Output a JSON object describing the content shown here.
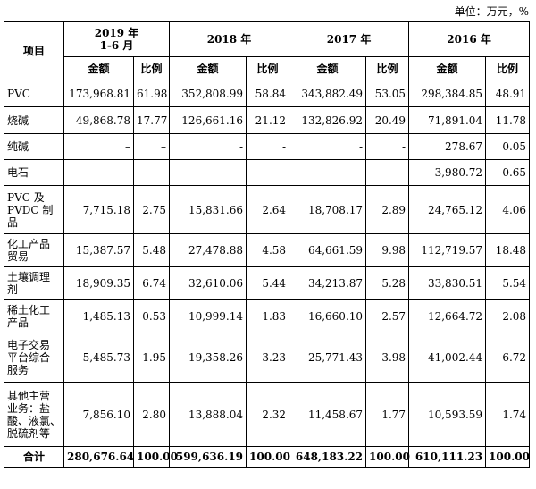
{
  "unit_note": "单位：万元，%",
  "header": {
    "item": "项目",
    "periods": [
      "2019 年\n1-6 月",
      "2018 年",
      "2017 年",
      "2016 年"
    ],
    "amount": "金额",
    "ratio": "比例"
  },
  "rows": [
    {
      "label": "PVC",
      "values": [
        "173,968.81",
        "61.98",
        "352,808.99",
        "58.84",
        "343,882.49",
        "53.05",
        "298,384.85",
        "48.91"
      ]
    },
    {
      "label": "烧碱",
      "values": [
        "49,868.78",
        "17.77",
        "126,661.16",
        "21.12",
        "132,826.92",
        "20.49",
        "71,891.04",
        "11.78"
      ]
    },
    {
      "label": "纯碱",
      "values": [
        "–",
        "–",
        "-",
        "-",
        "-",
        "-",
        "278.67",
        "0.05"
      ]
    },
    {
      "label": "电石",
      "values": [
        "–",
        "–",
        "-",
        "-",
        "-",
        "-",
        "3,980.72",
        "0.65"
      ]
    },
    {
      "label": "PVC 及\nPVDC 制\n品",
      "values": [
        "7,715.18",
        "2.75",
        "15,831.66",
        "2.64",
        "18,708.17",
        "2.89",
        "24,765.12",
        "4.06"
      ]
    },
    {
      "label": "化工产品\n贸易",
      "values": [
        "15,387.57",
        "5.48",
        "27,478.88",
        "4.58",
        "64,661.59",
        "9.98",
        "112,719.57",
        "18.48"
      ]
    },
    {
      "label": "土壤调理\n剂",
      "values": [
        "18,909.35",
        "6.74",
        "32,610.06",
        "5.44",
        "34,213.87",
        "5.28",
        "33,830.51",
        "5.54"
      ]
    },
    {
      "label": "稀土化工\n产品",
      "values": [
        "1,485.13",
        "0.53",
        "10,999.14",
        "1.83",
        "16,660.10",
        "2.57",
        "12,664.72",
        "2.08"
      ]
    },
    {
      "label": "电子交易\n平台综合\n服务",
      "values": [
        "5,485.73",
        "1.95",
        "19,358.26",
        "3.23",
        "25,771.43",
        "3.98",
        "41,002.44",
        "6.72"
      ]
    },
    {
      "label": "其他主营\n业务：盐\n酸、液氯、\n脱硫剂等",
      "values": [
        "7,856.10",
        "2.80",
        "13,888.04",
        "2.32",
        "11,458.67",
        "1.77",
        "10,593.59",
        "1.74"
      ]
    }
  ],
  "total": {
    "label": "合计",
    "values": [
      "280,676.64",
      "100.00",
      "599,636.19",
      "100.00",
      "648,183.22",
      "100.00",
      "610,111.23",
      "100.00"
    ]
  }
}
